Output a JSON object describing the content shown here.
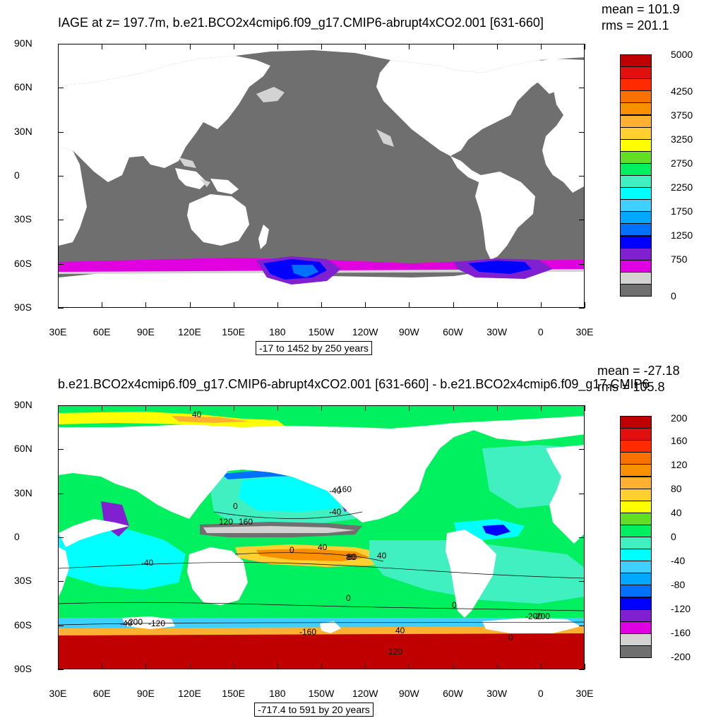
{
  "top": {
    "title": "IAGE at z= 197.7m, b.e21.BCO2x4cmip6.f09_g17.CMIP6-abrupt4xCO2.001 [631-660]",
    "mean_label": "mean = 101.9",
    "rms_label": "rms = 201.1",
    "info": "-17 to 1452 by 250 years",
    "colorbar": {
      "colors": [
        "#c00000",
        "#e01010",
        "#ff2a00",
        "#f77200",
        "#f99000",
        "#ffb030",
        "#ffd030",
        "#ffff00",
        "#60e020",
        "#00f060",
        "#40f0c0",
        "#00ffff",
        "#40d0ff",
        "#00a8ff",
        "#0070ff",
        "#0000ff",
        "#8020d0",
        "#e000e0",
        "#d3d3d3",
        "#707070"
      ],
      "labels": [
        "5000",
        "4250",
        "3750",
        "3250",
        "2750",
        "2250",
        "1750",
        "1250",
        "750",
        "0"
      ]
    }
  },
  "bottom": {
    "title": "b.e21.BCO2x4cmip6.f09_g17.CMIP6-abrupt4xCO2.001 [631-660] - b.e21.BCO2x4cmip6.f09_g17.CMIP6",
    "mean_label": "mean = -27.18",
    "rms_label": "rms = 105.8",
    "info": "-717.4 to 591 by 20 years",
    "colorbar": {
      "colors": [
        "#c00000",
        "#e01010",
        "#ff2a00",
        "#f77200",
        "#f99000",
        "#ffb030",
        "#ffd030",
        "#ffff00",
        "#60e020",
        "#00f060",
        "#40f0c0",
        "#00ffff",
        "#40d0ff",
        "#00a8ff",
        "#0070ff",
        "#0000ff",
        "#8020d0",
        "#e000e0",
        "#d3d3d3",
        "#707070"
      ],
      "labels": [
        "200",
        "160",
        "120",
        "80",
        "40",
        "0",
        "-40",
        "-80",
        "-120",
        "-160",
        "-200"
      ]
    },
    "contour_labels": [
      "40",
      "0",
      "-40",
      "80",
      "120",
      "160",
      "-160",
      "0",
      "-40",
      "40",
      "80",
      "40",
      "-40",
      "0",
      "0",
      "-200",
      "-120",
      "-200",
      "-160",
      "40",
      "120",
      "-40",
      "-200",
      "0"
    ]
  },
  "axes": {
    "lat_labels": [
      "90N",
      "60N",
      "30N",
      "0",
      "30S",
      "60S",
      "90S"
    ],
    "lon_labels": [
      "30E",
      "60E",
      "90E",
      "120E",
      "150E",
      "180",
      "150W",
      "120W",
      "90W",
      "60W",
      "30W",
      "0",
      "30E"
    ]
  },
  "colors": {
    "land": "#ffffff",
    "ocean_top": "#6f6f6f",
    "ice_shallow": "#d3d3d3"
  }
}
